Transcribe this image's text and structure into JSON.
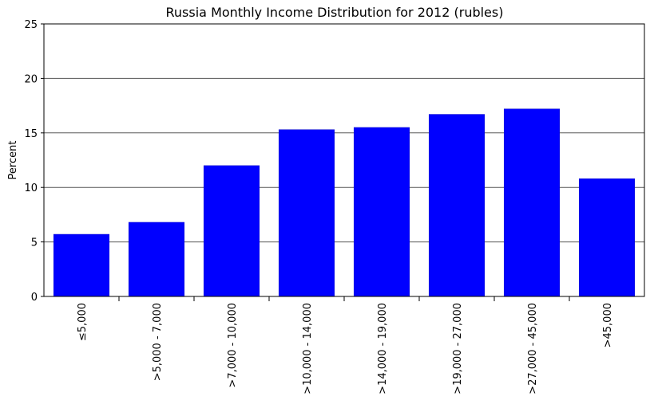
{
  "chart_data": {
    "type": "bar",
    "title": "Russia Monthly Income Distribution for 2012 (rubles)",
    "xlabel": "",
    "ylabel": "Percent",
    "ylim": [
      0,
      25
    ],
    "yticks": [
      0,
      5,
      10,
      15,
      20,
      25
    ],
    "grid": true,
    "bar_color": "#0000ff",
    "categories": [
      "≤5,000",
      ">5,000 - 7,000",
      ">7,000 - 10,000",
      ">10,000 - 14,000",
      ">14,000 - 19,000",
      ">19,000 - 27,000",
      ">27,000 - 45,000",
      ">45,000"
    ],
    "values": [
      5.7,
      6.8,
      12.0,
      15.3,
      15.5,
      16.7,
      17.2,
      10.8
    ]
  }
}
